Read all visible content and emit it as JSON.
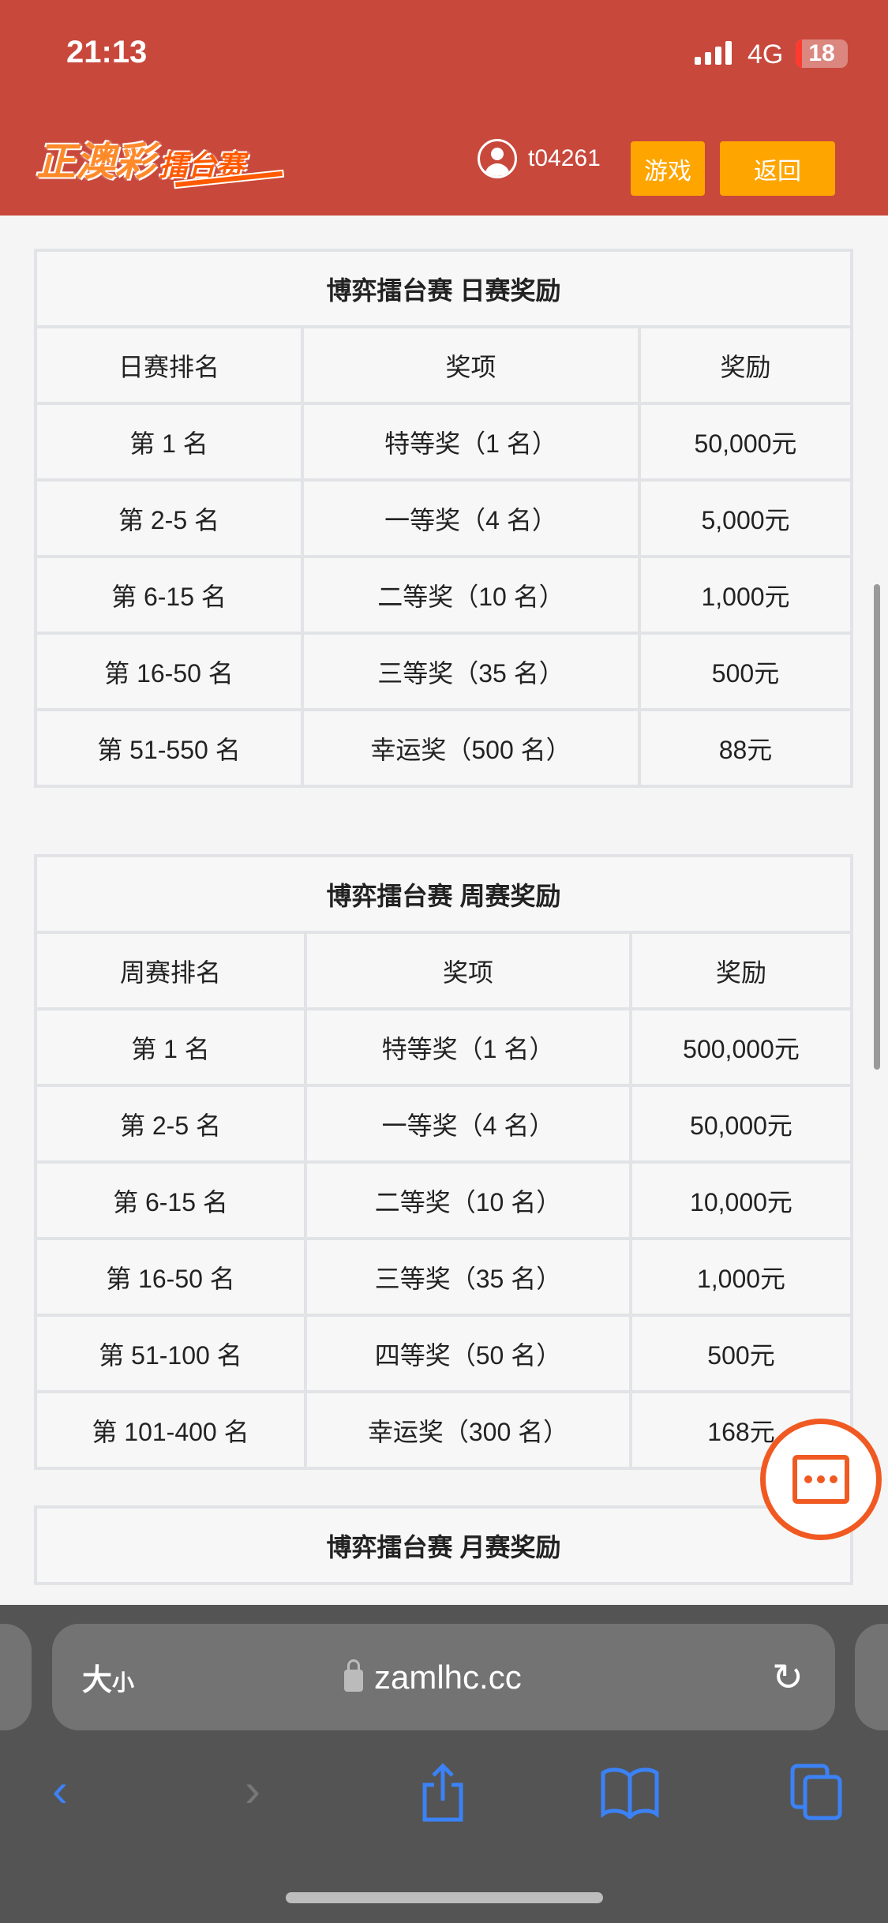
{
  "status_bar": {
    "time": "21:13",
    "network": "4G",
    "battery": "18"
  },
  "header": {
    "logo_main": "正澳彩",
    "logo_sub": "擂台赛",
    "username": "t04261",
    "games_button": "游戏",
    "back_button": "返回"
  },
  "tables": [
    {
      "title": "博弈擂台赛 日赛奖励",
      "headers": [
        "日赛排名",
        "奖项",
        "奖励"
      ],
      "rows": [
        [
          "第 1 名",
          "特等奖（1 名）",
          "50,000元"
        ],
        [
          "第 2-5 名",
          "一等奖（4 名）",
          "5,000元"
        ],
        [
          "第 6-15 名",
          "二等奖（10 名）",
          "1,000元"
        ],
        [
          "第 16-50 名",
          "三等奖（35 名）",
          "500元"
        ],
        [
          "第 51-550 名",
          "幸运奖（500 名）",
          "88元"
        ]
      ]
    },
    {
      "title": "博弈擂台赛 周赛奖励",
      "headers": [
        "周赛排名",
        "奖项",
        "奖励"
      ],
      "rows": [
        [
          "第 1 名",
          "特等奖（1 名）",
          "500,000元"
        ],
        [
          "第 2-5 名",
          "一等奖（4 名）",
          "50,000元"
        ],
        [
          "第 6-15 名",
          "二等奖（10 名）",
          "10,000元"
        ],
        [
          "第 16-50 名",
          "三等奖（35 名）",
          "1,000元"
        ],
        [
          "第 51-100 名",
          "四等奖（50 名）",
          "500元"
        ],
        [
          "第 101-400 名",
          "幸运奖（300 名）",
          "168元"
        ]
      ]
    },
    {
      "title": "博弈擂台赛 月赛奖励"
    }
  ],
  "browser": {
    "text_size_label_big": "大",
    "text_size_label_small": "小",
    "url": "zamlhc.cc"
  },
  "colors": {
    "header": "#c8483c",
    "button": "#ffa500",
    "chat": "#f05a22",
    "toolbar_icon": "#3b82f6"
  }
}
